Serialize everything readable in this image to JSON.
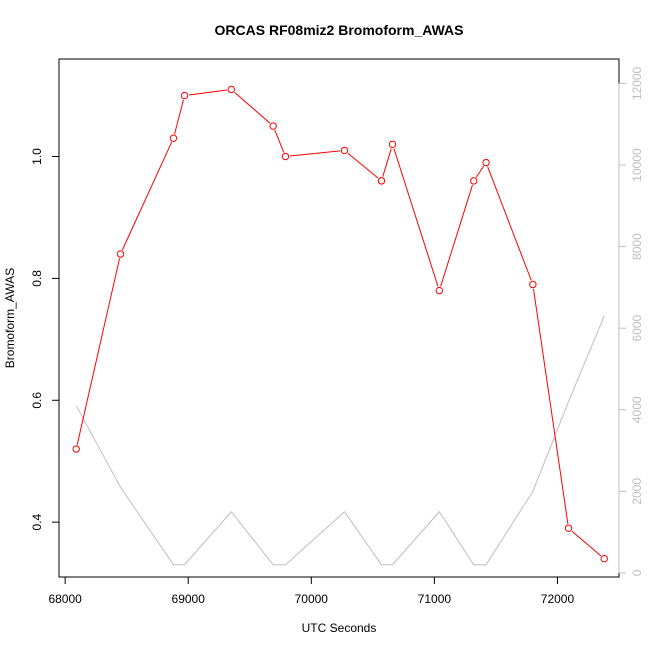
{
  "chart_data": {
    "type": "line",
    "title": "ORCAS RF08miz2 Bromoform_AWAS",
    "xlabel": "UTC Seconds",
    "ylabel": "Bromoform_AWAS",
    "xlim": [
      67950,
      72500
    ],
    "ylim": [
      0.31,
      1.16
    ],
    "y2lim": [
      -100,
      12600
    ],
    "x_ticks": [
      68000,
      69000,
      70000,
      71000,
      72000
    ],
    "y_ticks": [
      0.4,
      0.6,
      0.8,
      1.0
    ],
    "y_tick_labels": [
      "0.4",
      "0.6",
      "0.8",
      "1.0"
    ],
    "y2_ticks": [
      0,
      2000,
      4000,
      6000,
      8000,
      10000,
      12000
    ],
    "grid": false,
    "series": [
      {
        "color": "#ff0000",
        "axis": "left",
        "marker": "circle-open",
        "x": [
          68090,
          68450,
          68880,
          68970,
          69350,
          69690,
          69790,
          70270,
          70570,
          70660,
          71040,
          71320,
          71420,
          71800,
          72090,
          72380
        ],
        "y": [
          0.52,
          0.84,
          1.03,
          1.1,
          1.11,
          1.05,
          1.0,
          1.01,
          0.96,
          1.02,
          0.78,
          0.96,
          0.99,
          0.79,
          0.39,
          0.34
        ]
      },
      {
        "color": "#bebebe",
        "axis": "right",
        "marker": "none",
        "x": [
          68090,
          68450,
          68880,
          68970,
          69350,
          69690,
          69790,
          70270,
          70570,
          70660,
          71040,
          71320,
          71420,
          71800,
          72090,
          72380
        ],
        "y": [
          4100,
          2100,
          200,
          200,
          1500,
          200,
          200,
          1500,
          200,
          200,
          1500,
          200,
          200,
          2000,
          4200,
          6300
        ]
      }
    ]
  }
}
